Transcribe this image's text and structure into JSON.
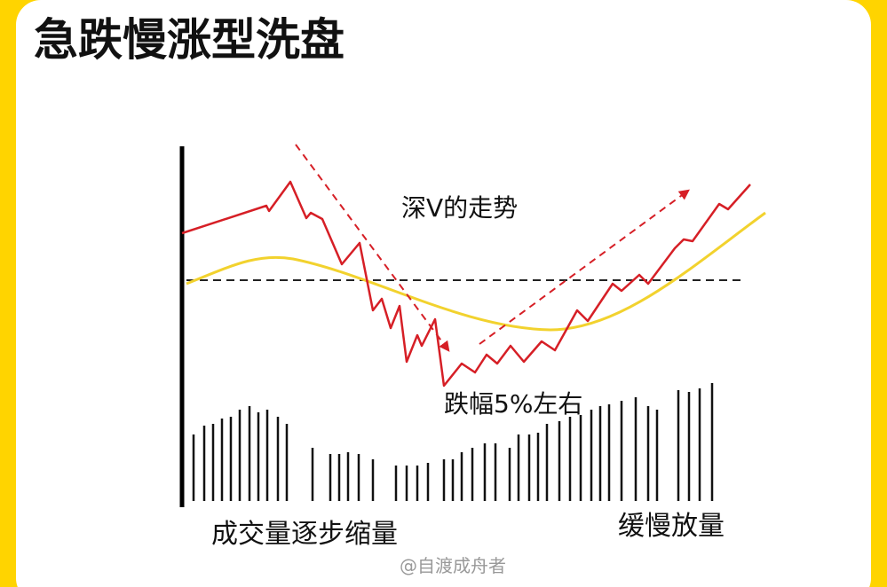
{
  "title": "急跌慢涨型洗盘",
  "annotations": {
    "trend": "深V的走势",
    "drop": "跌幅5%左右"
  },
  "labels": {
    "volume_shrink": "成交量逐步缩量",
    "volume_grow": "缓慢放量"
  },
  "watermark": "@自渡成舟者"
}
